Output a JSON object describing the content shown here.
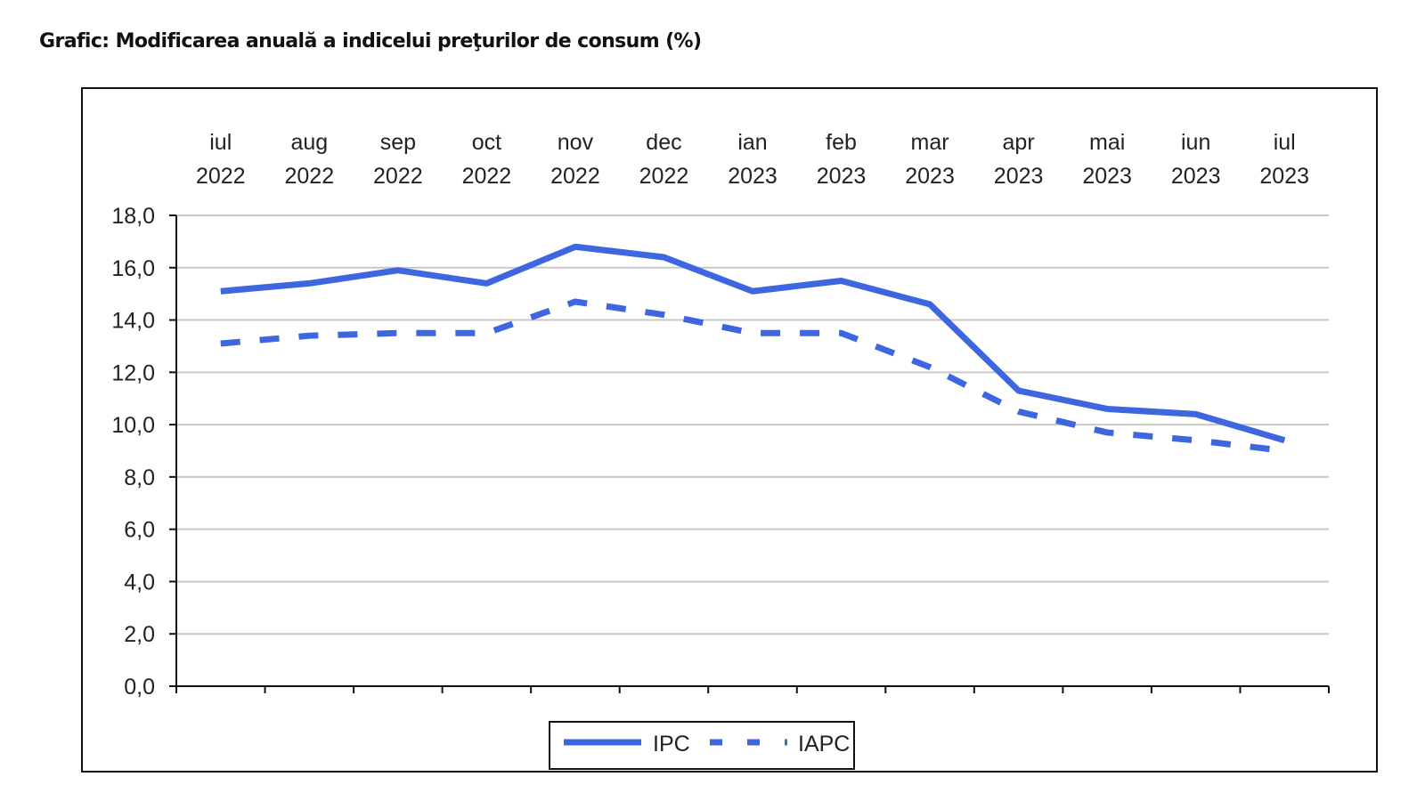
{
  "chart_data": {
    "type": "line",
    "title": "Grafic: Modificarea anuală a indicelui preţurilor de consum (%)",
    "xlabel": "",
    "ylabel": "",
    "ylim": [
      0,
      18
    ],
    "yticks": [
      "0,0",
      "2,0",
      "4,0",
      "6,0",
      "8,0",
      "10,0",
      "12,0",
      "14,0",
      "16,0",
      "18,0"
    ],
    "ytick_values": [
      0,
      2,
      4,
      6,
      8,
      10,
      12,
      14,
      16,
      18
    ],
    "grid": true,
    "legend_position": "bottom-center",
    "categories": [
      {
        "month": "iul",
        "year": "2022"
      },
      {
        "month": "aug",
        "year": "2022"
      },
      {
        "month": "sep",
        "year": "2022"
      },
      {
        "month": "oct",
        "year": "2022"
      },
      {
        "month": "nov",
        "year": "2022"
      },
      {
        "month": "dec",
        "year": "2022"
      },
      {
        "month": "ian",
        "year": "2023"
      },
      {
        "month": "feb",
        "year": "2023"
      },
      {
        "month": "mar",
        "year": "2023"
      },
      {
        "month": "apr",
        "year": "2023"
      },
      {
        "month": "mai",
        "year": "2023"
      },
      {
        "month": "iun",
        "year": "2023"
      },
      {
        "month": "iul",
        "year": "2023"
      }
    ],
    "series": [
      {
        "name": "IPC",
        "style": "solid",
        "color": "#3d66e0",
        "values": [
          15.1,
          15.4,
          15.9,
          15.4,
          16.8,
          16.4,
          15.1,
          15.5,
          14.6,
          11.3,
          10.6,
          10.4,
          9.4
        ]
      },
      {
        "name": "IAPC",
        "style": "dashed",
        "color": "#3d66e0",
        "values": [
          13.1,
          13.4,
          13.5,
          13.5,
          14.7,
          14.2,
          13.5,
          13.5,
          12.2,
          10.5,
          9.7,
          9.4,
          9.0
        ]
      }
    ]
  }
}
